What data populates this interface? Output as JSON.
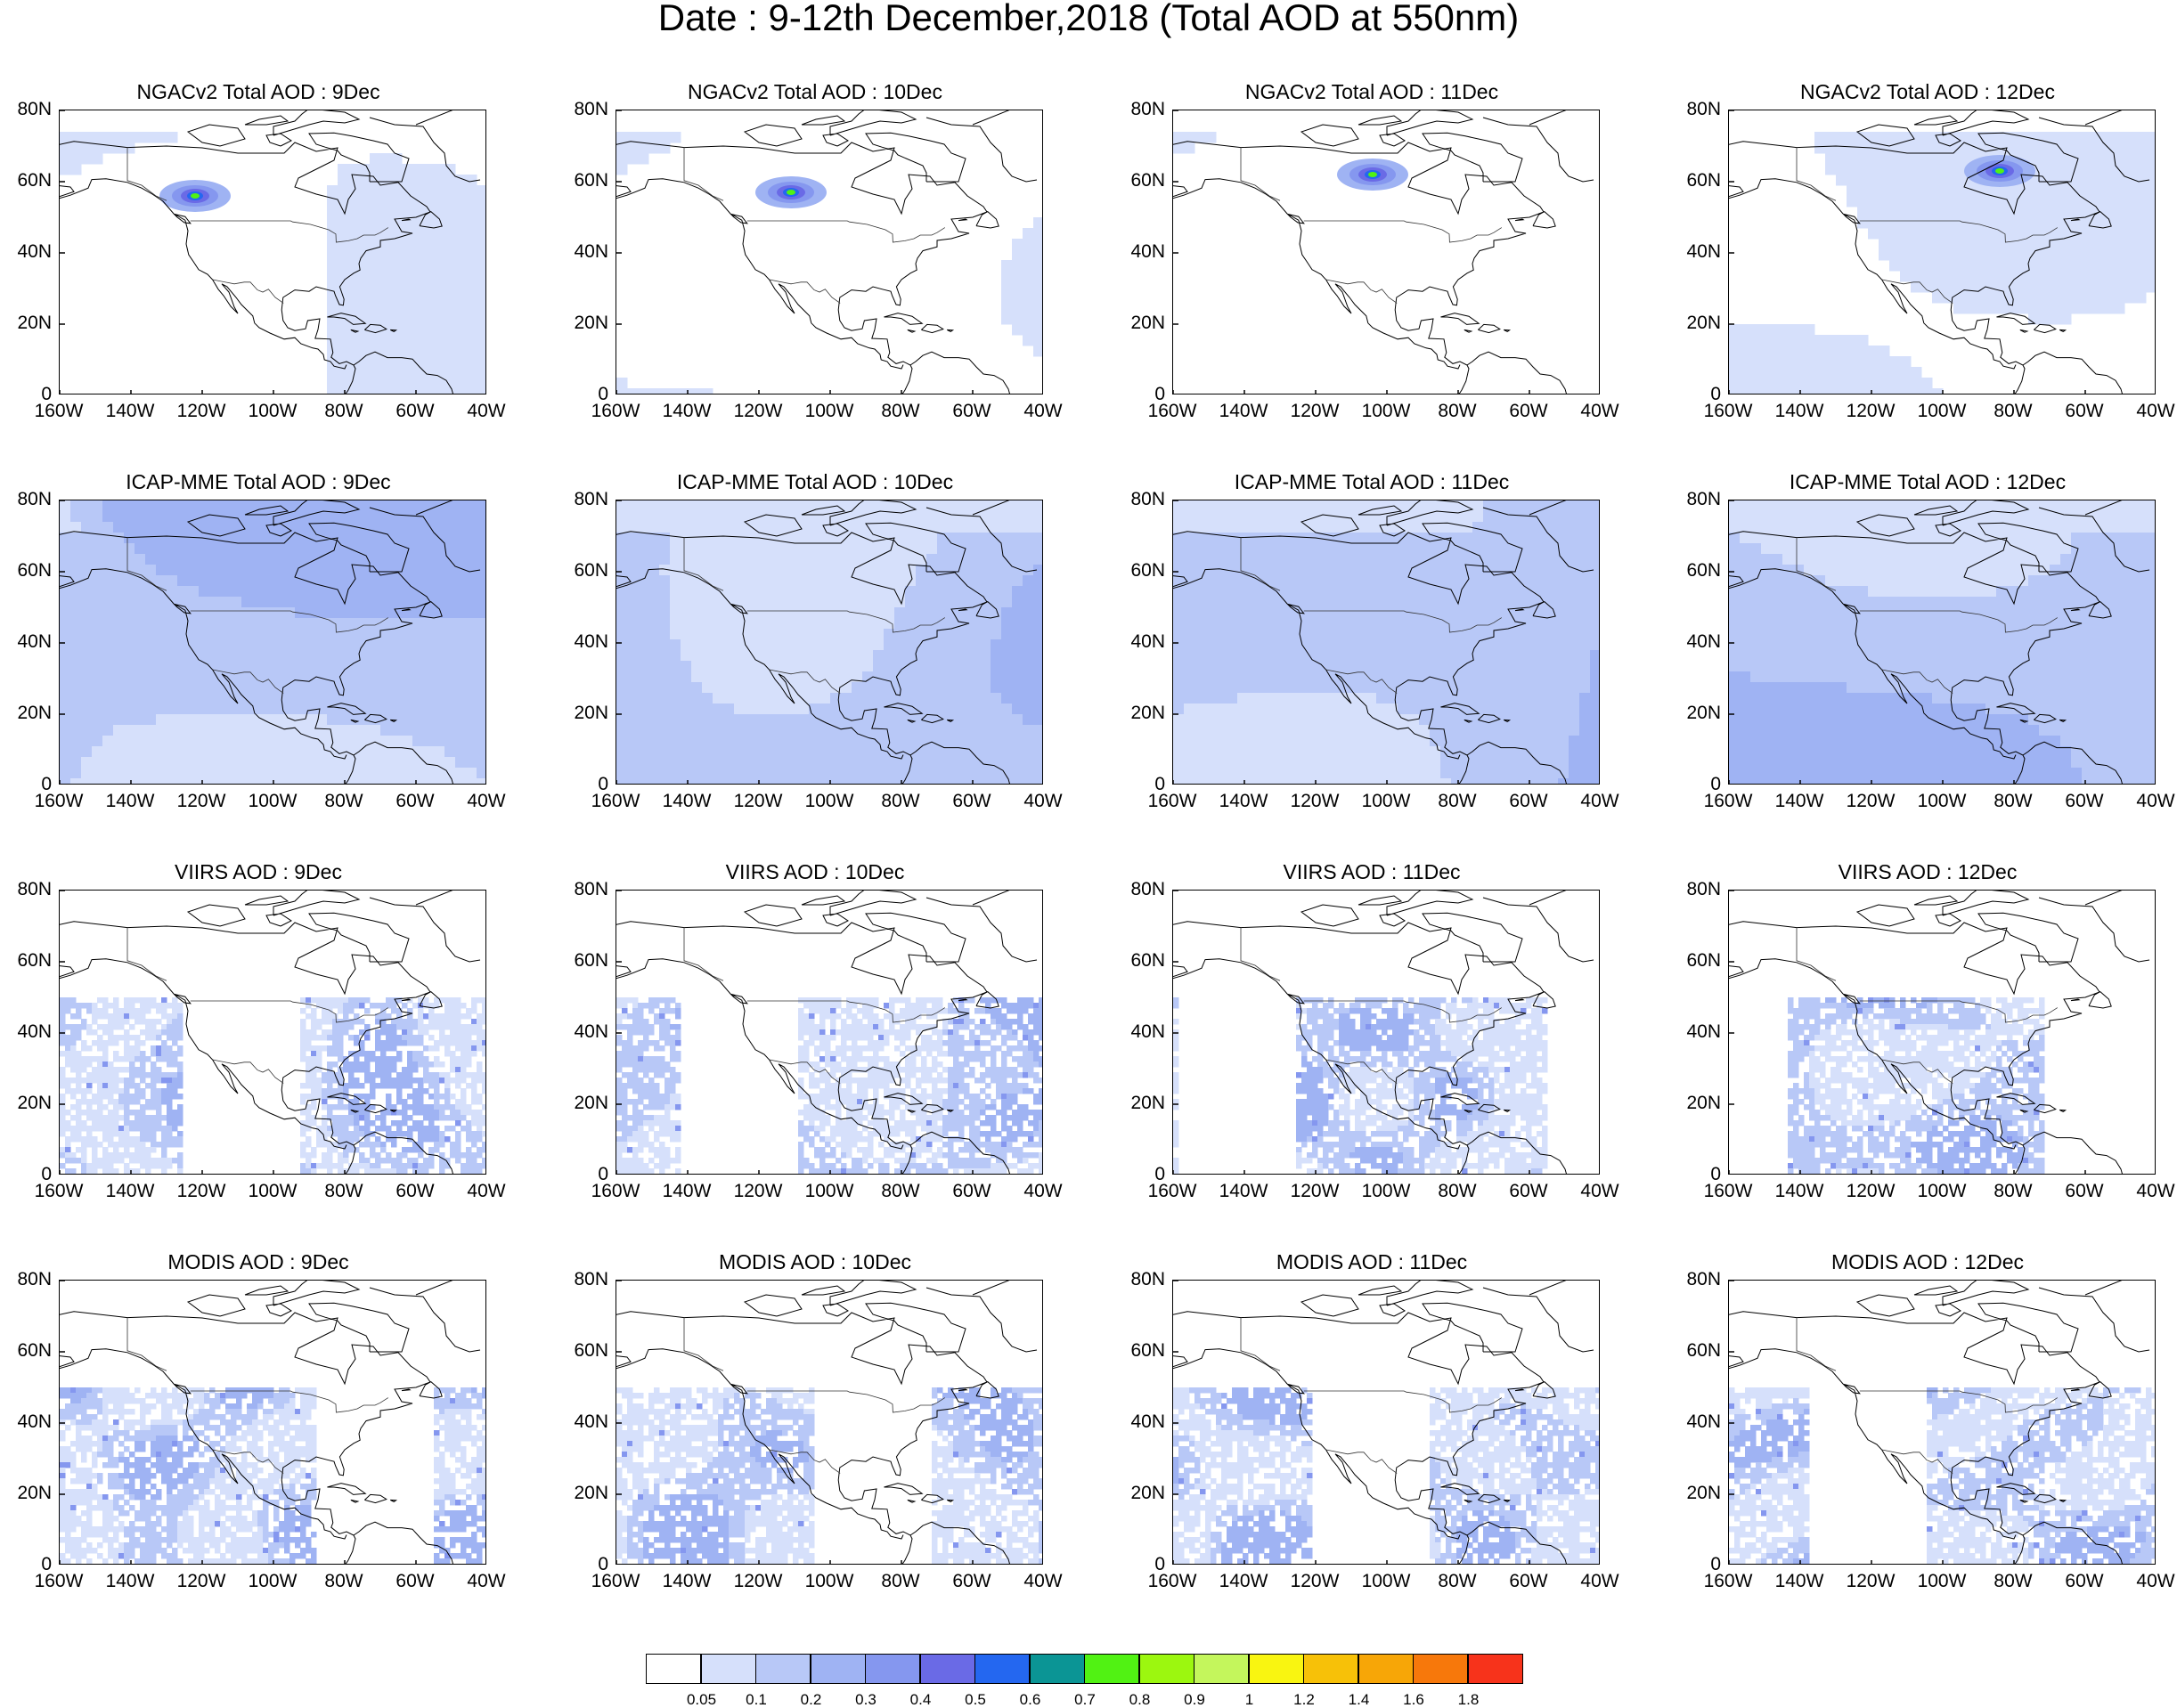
{
  "title": "Date : 9-12th December,2018 (Total AOD at 550nm)",
  "lat_ticks": [
    "80N",
    "60N",
    "40N",
    "20N",
    "0"
  ],
  "lon_ticks": [
    "160W",
    "140W",
    "120W",
    "100W",
    "80W",
    "60W",
    "40W"
  ],
  "colorbar": {
    "colors": [
      "#ffffff",
      "#d6e0fb",
      "#b8c8f7",
      "#9fb3f3",
      "#8597ef",
      "#6a6ae6",
      "#2467f0",
      "#0b9595",
      "#51f213",
      "#9cf70f",
      "#c4f65c",
      "#f9f511",
      "#f7c108",
      "#f7a607",
      "#f7780b",
      "#f7331b"
    ],
    "labels": [
      "0.05",
      "0.1",
      "0.2",
      "0.3",
      "0.4",
      "0.5",
      "0.6",
      "0.7",
      "0.8",
      "0.9",
      "1",
      "1.2",
      "1.4",
      "1.6",
      "1.8"
    ]
  },
  "panels": [
    {
      "title": "NGACv2 Total AOD : 9Dec",
      "dataset": "NGACv2",
      "date": "9Dec",
      "mean_aod_class": 1,
      "hotspot": {
        "lon": -122,
        "lat": 56
      }
    },
    {
      "title": "NGACv2 Total AOD : 10Dec",
      "dataset": "NGACv2",
      "date": "10Dec",
      "mean_aod_class": 1,
      "hotspot": {
        "lon": -111,
        "lat": 57
      }
    },
    {
      "title": "NGACv2 Total AOD : 11Dec",
      "dataset": "NGACv2",
      "date": "11Dec",
      "mean_aod_class": 1,
      "hotspot": {
        "lon": -104,
        "lat": 62
      }
    },
    {
      "title": "NGACv2 Total AOD : 12Dec",
      "dataset": "NGACv2",
      "date": "12Dec",
      "mean_aod_class": 1,
      "hotspot": {
        "lon": -84,
        "lat": 63
      }
    },
    {
      "title": "ICAP-MME Total AOD : 9Dec",
      "dataset": "ICAP-MME",
      "date": "9Dec",
      "mean_aod_class": 2
    },
    {
      "title": "ICAP-MME Total AOD : 10Dec",
      "dataset": "ICAP-MME",
      "date": "10Dec",
      "mean_aod_class": 2
    },
    {
      "title": "ICAP-MME Total AOD : 11Dec",
      "dataset": "ICAP-MME",
      "date": "11Dec",
      "mean_aod_class": 2
    },
    {
      "title": "ICAP-MME Total AOD : 12Dec",
      "dataset": "ICAP-MME",
      "date": "12Dec",
      "mean_aod_class": 2
    },
    {
      "title": "VIIRS AOD : 9Dec",
      "dataset": "VIIRS",
      "date": "9Dec",
      "mean_aod_class": 1
    },
    {
      "title": "VIIRS AOD : 10Dec",
      "dataset": "VIIRS",
      "date": "10Dec",
      "mean_aod_class": 1
    },
    {
      "title": "VIIRS AOD : 11Dec",
      "dataset": "VIIRS",
      "date": "11Dec",
      "mean_aod_class": 1
    },
    {
      "title": "VIIRS AOD : 12Dec",
      "dataset": "VIIRS",
      "date": "12Dec",
      "mean_aod_class": 1
    },
    {
      "title": "MODIS AOD : 9Dec",
      "dataset": "MODIS",
      "date": "9Dec",
      "mean_aod_class": 1
    },
    {
      "title": "MODIS AOD : 10Dec",
      "dataset": "MODIS",
      "date": "10Dec",
      "mean_aod_class": 1
    },
    {
      "title": "MODIS AOD : 11Dec",
      "dataset": "MODIS",
      "date": "11Dec",
      "mean_aod_class": 1
    },
    {
      "title": "MODIS AOD : 12Dec",
      "dataset": "MODIS",
      "date": "12Dec",
      "mean_aod_class": 1
    }
  ]
}
